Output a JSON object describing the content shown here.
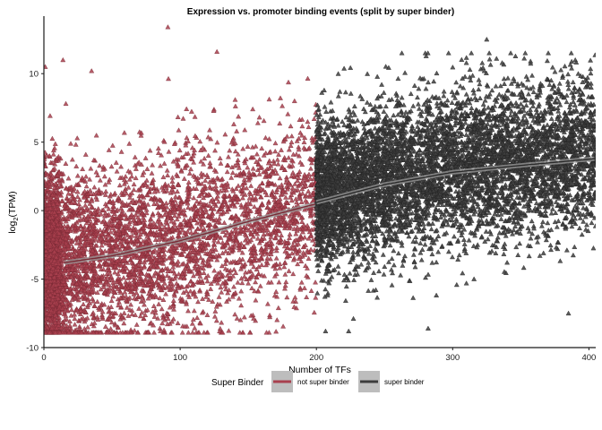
{
  "chart_data": {
    "type": "scatter",
    "title": "Expression vs. promoter binding events (split by super binder)",
    "xlabel": "Number of TFs",
    "ylabel": "log2(TPM)",
    "ylabel_main": "log",
    "ylabel_sub": "2",
    "ylabel_suffix": "(TPM)",
    "xlim": [
      0,
      405
    ],
    "ylim": [
      -10,
      14.2
    ],
    "x_ticks": [
      0,
      100,
      200,
      300,
      400
    ],
    "y_ticks": [
      -10,
      -5,
      0,
      5,
      10
    ],
    "grid": false,
    "legend": {
      "title": "Super Binder",
      "position": "bottom"
    },
    "series": [
      {
        "name": "not super binder",
        "color": "#a8404e",
        "marker": "triangle",
        "x_range": [
          0,
          200
        ],
        "y_center_at_x0": -3.5,
        "y_spread": 3.2,
        "trend": {
          "x": [
            15,
            50,
            100,
            150,
            200
          ],
          "y": [
            -3.8,
            -3.3,
            -2.2,
            -0.8,
            0.5
          ]
        },
        "notable_points": [
          {
            "x": 91,
            "y": 13.4
          },
          {
            "x": 127,
            "y": 11.6
          },
          {
            "x": 14,
            "y": 11.0
          },
          {
            "x": 35,
            "y": 10.2
          },
          {
            "x": 1,
            "y": 10.5
          }
        ]
      },
      {
        "name": "super binder",
        "color": "#3d3d3d",
        "marker": "triangle",
        "x_range": [
          200,
          405
        ],
        "y_center": 3.2,
        "y_spread": 2.8,
        "trend": {
          "x": [
            200,
            250,
            300,
            350,
            405
          ],
          "y": [
            0.6,
            1.9,
            2.8,
            3.3,
            3.8
          ]
        },
        "notable_points": [
          {
            "x": 325,
            "y": 12.5
          },
          {
            "x": 390,
            "y": 11.0
          },
          {
            "x": 282,
            "y": -8.6
          },
          {
            "x": 385,
            "y": -7.5
          }
        ]
      }
    ]
  }
}
